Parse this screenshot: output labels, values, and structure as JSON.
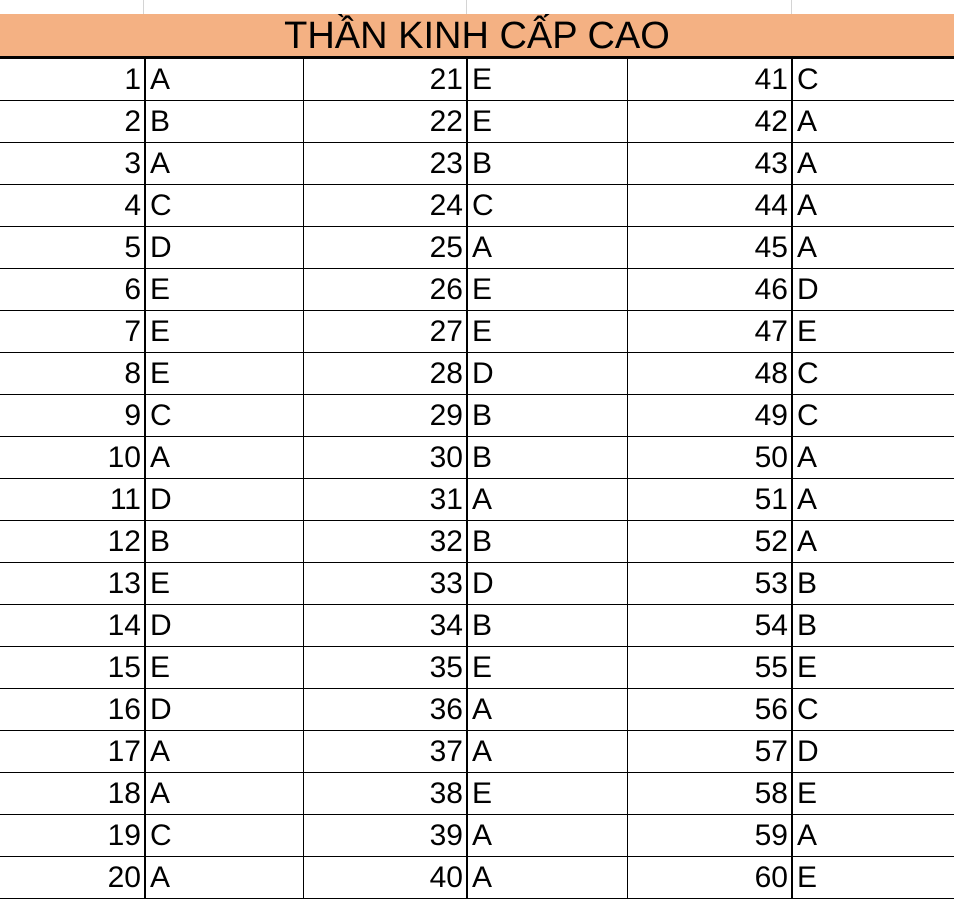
{
  "title": "THẦN KINH CẤP CAO",
  "colors": {
    "title_background": "#f4b183",
    "grid": "#000000",
    "text": "#000000"
  },
  "rows": [
    {
      "c1": {
        "num": "1",
        "ans": "A"
      },
      "c2": {
        "num": "21",
        "ans": "E"
      },
      "c3": {
        "num": "41",
        "ans": "C"
      }
    },
    {
      "c1": {
        "num": "2",
        "ans": "B"
      },
      "c2": {
        "num": "22",
        "ans": "E"
      },
      "c3": {
        "num": "42",
        "ans": "A"
      }
    },
    {
      "c1": {
        "num": "3",
        "ans": "A"
      },
      "c2": {
        "num": "23",
        "ans": "B"
      },
      "c3": {
        "num": "43",
        "ans": "A"
      }
    },
    {
      "c1": {
        "num": "4",
        "ans": "C"
      },
      "c2": {
        "num": "24",
        "ans": "C"
      },
      "c3": {
        "num": "44",
        "ans": "A"
      }
    },
    {
      "c1": {
        "num": "5",
        "ans": "D"
      },
      "c2": {
        "num": "25",
        "ans": "A"
      },
      "c3": {
        "num": "45",
        "ans": "A"
      }
    },
    {
      "c1": {
        "num": "6",
        "ans": "E"
      },
      "c2": {
        "num": "26",
        "ans": "E"
      },
      "c3": {
        "num": "46",
        "ans": "D"
      }
    },
    {
      "c1": {
        "num": "7",
        "ans": "E"
      },
      "c2": {
        "num": "27",
        "ans": "E"
      },
      "c3": {
        "num": "47",
        "ans": "E"
      }
    },
    {
      "c1": {
        "num": "8",
        "ans": "E"
      },
      "c2": {
        "num": "28",
        "ans": "D"
      },
      "c3": {
        "num": "48",
        "ans": "C"
      }
    },
    {
      "c1": {
        "num": "9",
        "ans": "C"
      },
      "c2": {
        "num": "29",
        "ans": "B"
      },
      "c3": {
        "num": "49",
        "ans": "C"
      }
    },
    {
      "c1": {
        "num": "10",
        "ans": "A"
      },
      "c2": {
        "num": "30",
        "ans": "B"
      },
      "c3": {
        "num": "50",
        "ans": "A"
      }
    },
    {
      "c1": {
        "num": "11",
        "ans": "D"
      },
      "c2": {
        "num": "31",
        "ans": "A"
      },
      "c3": {
        "num": "51",
        "ans": "A"
      }
    },
    {
      "c1": {
        "num": "12",
        "ans": "B"
      },
      "c2": {
        "num": "32",
        "ans": "B"
      },
      "c3": {
        "num": "52",
        "ans": "A"
      }
    },
    {
      "c1": {
        "num": "13",
        "ans": "E"
      },
      "c2": {
        "num": "33",
        "ans": "D"
      },
      "c3": {
        "num": "53",
        "ans": "B"
      }
    },
    {
      "c1": {
        "num": "14",
        "ans": "D"
      },
      "c2": {
        "num": "34",
        "ans": "B"
      },
      "c3": {
        "num": "54",
        "ans": "B"
      }
    },
    {
      "c1": {
        "num": "15",
        "ans": "E"
      },
      "c2": {
        "num": "35",
        "ans": "E"
      },
      "c3": {
        "num": "55",
        "ans": "E"
      }
    },
    {
      "c1": {
        "num": "16",
        "ans": "D"
      },
      "c2": {
        "num": "36",
        "ans": "A"
      },
      "c3": {
        "num": "56",
        "ans": "C"
      }
    },
    {
      "c1": {
        "num": "17",
        "ans": "A"
      },
      "c2": {
        "num": "37",
        "ans": "A"
      },
      "c3": {
        "num": "57",
        "ans": "D"
      }
    },
    {
      "c1": {
        "num": "18",
        "ans": "A"
      },
      "c2": {
        "num": "38",
        "ans": "E"
      },
      "c3": {
        "num": "58",
        "ans": "E"
      }
    },
    {
      "c1": {
        "num": "19",
        "ans": "C"
      },
      "c2": {
        "num": "39",
        "ans": "A"
      },
      "c3": {
        "num": "59",
        "ans": "A"
      }
    },
    {
      "c1": {
        "num": "20",
        "ans": "A"
      },
      "c2": {
        "num": "40",
        "ans": "A"
      },
      "c3": {
        "num": "60",
        "ans": "E"
      }
    }
  ]
}
